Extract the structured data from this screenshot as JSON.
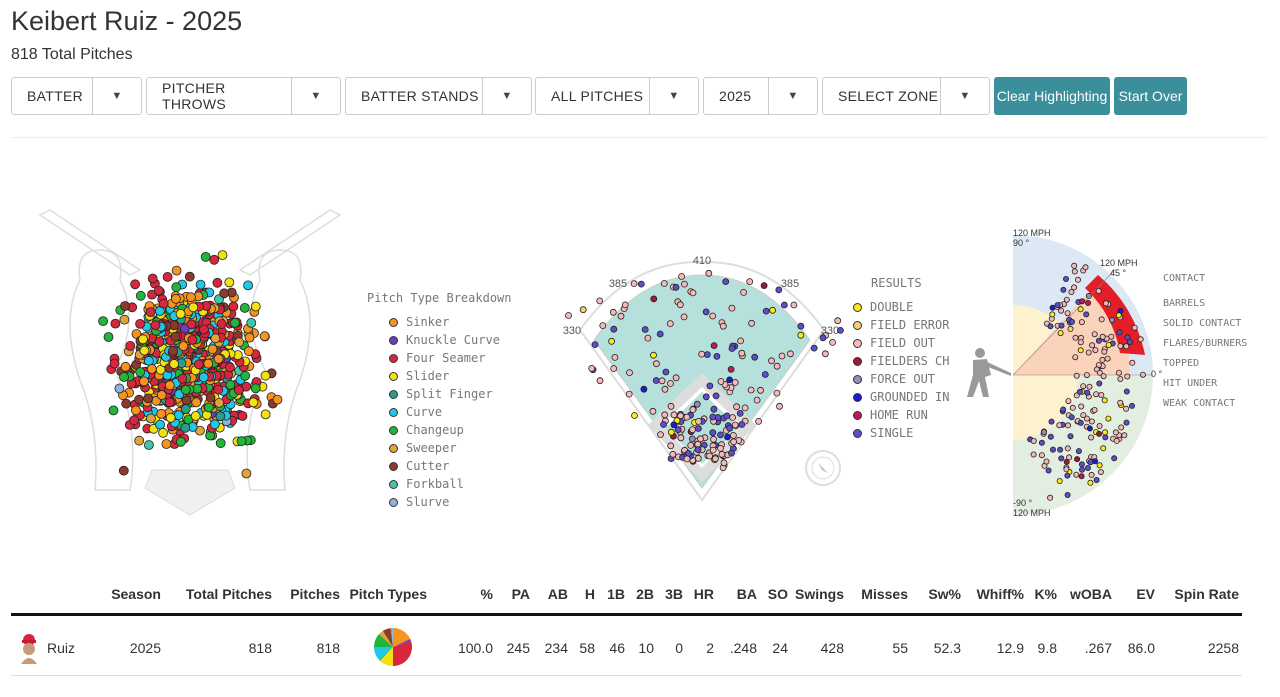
{
  "title": "Keibert Ruiz - 2025",
  "subtitle": "818 Total Pitches",
  "filters": [
    {
      "label": "BATTER",
      "left": 11,
      "width": 131
    },
    {
      "label": "PITCHER THROWS",
      "left": 146,
      "width": 195
    },
    {
      "label": "BATTER STANDS",
      "left": 345,
      "width": 187
    },
    {
      "label": "ALL PITCHES",
      "left": 535,
      "width": 164
    },
    {
      "label": "2025",
      "left": 703,
      "width": 115
    },
    {
      "label": "SELECT ZONE",
      "left": 822,
      "width": 168
    }
  ],
  "buttons": {
    "clear": "Clear Highlighting",
    "start_over": "Start Over"
  },
  "pitch_legend": {
    "title": "Pitch Type Breakdown",
    "items": [
      {
        "name": "Sinker",
        "color": "#f7941d"
      },
      {
        "name": "Knuckle Curve",
        "color": "#6a3dc9"
      },
      {
        "name": "Four Seamer",
        "color": "#d7263d"
      },
      {
        "name": "Slider",
        "color": "#f2e20f"
      },
      {
        "name": "Split Finger",
        "color": "#2a9d8f"
      },
      {
        "name": "Curve",
        "color": "#1ec8e6"
      },
      {
        "name": "Changeup",
        "color": "#22b53c"
      },
      {
        "name": "Sweeper",
        "color": "#e0a53a"
      },
      {
        "name": "Cutter",
        "color": "#8b3a2e"
      },
      {
        "name": "Forkball",
        "color": "#3ec7a8"
      },
      {
        "name": "Slurve",
        "color": "#8fb3e0"
      }
    ]
  },
  "field": {
    "labels": {
      "center": "410",
      "left_center": "385",
      "right_center": "385",
      "left": "330",
      "right": "330"
    }
  },
  "results_legend": {
    "title": "RESULTS",
    "items": [
      {
        "name": "DOUBLE",
        "color": "#ffe81a"
      },
      {
        "name": "FIELD ERROR",
        "color": "#f6d06a"
      },
      {
        "name": "FIELD OUT",
        "color": "#f6b9b9"
      },
      {
        "name": "FIELDERS CH",
        "color": "#9b1b30"
      },
      {
        "name": "FORCE OUT",
        "color": "#9c89b8"
      },
      {
        "name": "GROUNDED IN",
        "color": "#1a1adb"
      },
      {
        "name": "HOME RUN",
        "color": "#c2185b"
      },
      {
        "name": "SINGLE",
        "color": "#5b4fc9"
      }
    ]
  },
  "contact": {
    "top_speed": "120 MPH",
    "top_angle": "90 °",
    "barrel_speed": "120 MPH",
    "barrel_angle": "45 °",
    "zero_angle": "0 °",
    "bottom_angle": "-90 °",
    "bottom_speed": "120 MPH",
    "categories": [
      "CONTACT",
      "BARRELS",
      "SOLID CONTACT",
      "FLARES/BURNERS",
      "TOPPED",
      "HIT UNDER",
      "WEAK CONTACT"
    ]
  },
  "table": {
    "headers": [
      "Season",
      "Total Pitches",
      "Pitches",
      "Pitch Types",
      "%",
      "PA",
      "AB",
      "H",
      "1B",
      "2B",
      "3B",
      "HR",
      "BA",
      "SO",
      "Swings",
      "Misses",
      "Sw%",
      "Whiff%",
      "K%",
      "wOBA",
      "EV",
      "Spin Rate"
    ],
    "row": {
      "player": "Ruiz",
      "values": [
        "2025",
        "818",
        "818",
        "",
        "100.0",
        "245",
        "234",
        "58",
        "46",
        "10",
        "0",
        "2",
        ".248",
        "24",
        "428",
        "55",
        "52.3",
        "12.9",
        "9.8",
        ".267",
        "86.0",
        "2258"
      ]
    }
  }
}
